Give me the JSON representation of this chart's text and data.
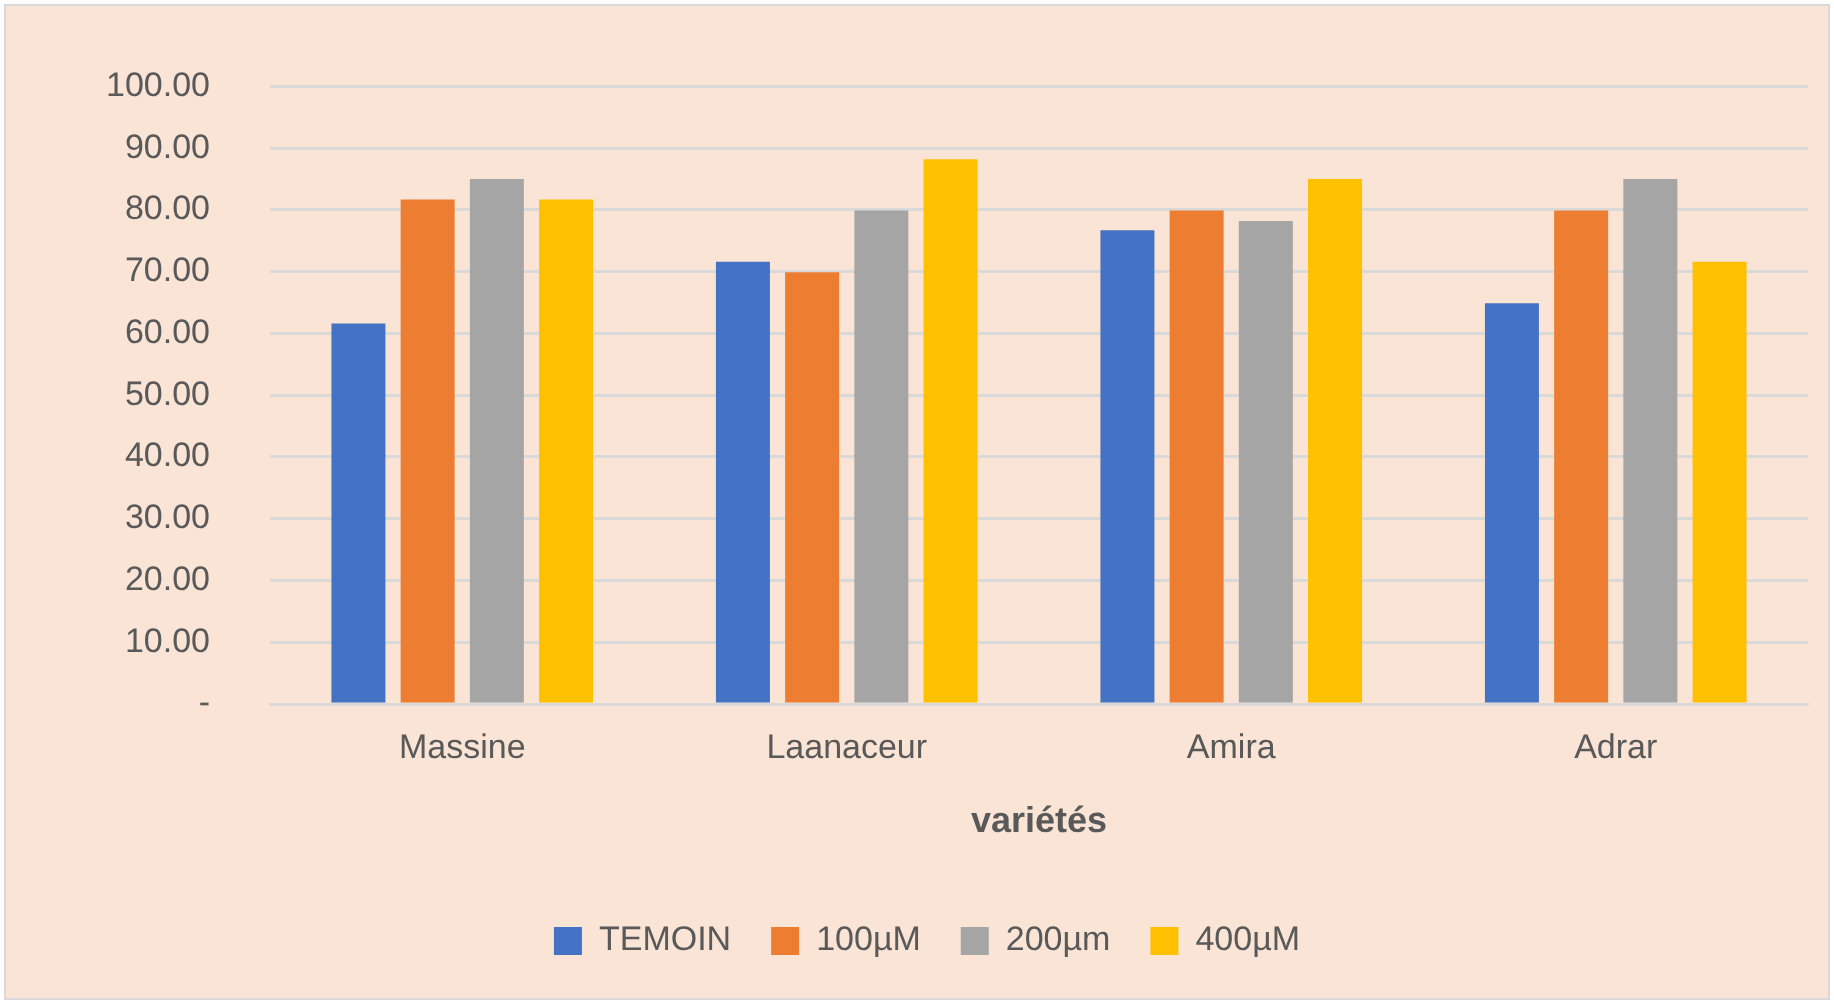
{
  "chart_data": {
    "type": "bar",
    "xlabel": "variétés",
    "categories": [
      "Massine",
      "Laanaceur",
      "Amira",
      "Adrar"
    ],
    "series": [
      {
        "name": "TEMOIN",
        "color": "#4472c4",
        "values": [
          61.6,
          71.6,
          76.7,
          64.9
        ]
      },
      {
        "name": "100µM",
        "color": "#ed7d31",
        "values": [
          81.7,
          69.9,
          79.9,
          79.9
        ]
      },
      {
        "name": "200µm",
        "color": "#a5a5a5",
        "values": [
          85.0,
          79.9,
          78.2,
          85.0
        ]
      },
      {
        "name": "400µM",
        "color": "#ffc000",
        "values": [
          81.7,
          88.2,
          85.0,
          71.6
        ]
      }
    ],
    "ylim": [
      0,
      100
    ],
    "yticks": [
      {
        "value": 0,
        "label": "-"
      },
      {
        "value": 10,
        "label": "10.00"
      },
      {
        "value": 20,
        "label": "20.00"
      },
      {
        "value": 30,
        "label": "30.00"
      },
      {
        "value": 40,
        "label": "40.00"
      },
      {
        "value": 50,
        "label": "50.00"
      },
      {
        "value": 60,
        "label": "60.00"
      },
      {
        "value": 70,
        "label": "70.00"
      },
      {
        "value": 80,
        "label": "80.00"
      },
      {
        "value": 90,
        "label": "90.00"
      },
      {
        "value": 100,
        "label": "100.00"
      }
    ],
    "grid": "y",
    "legend": "bottom"
  }
}
